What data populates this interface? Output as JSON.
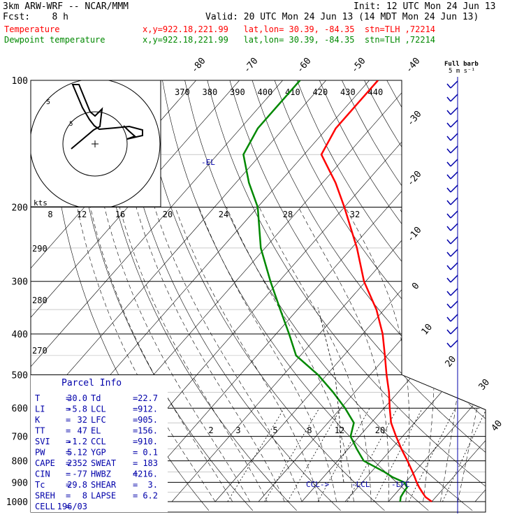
{
  "header": {
    "model": "3km ARW-WRF -- NCAR/MMM",
    "init": "Init: 12 UTC Mon 24 Jun 13",
    "fcst": "Fcst:    8 h",
    "valid": "Valid: 20 UTC Mon 24 Jun 13 (14 MDT Mon 24 Jun 13)",
    "temp_label": "Temperature",
    "temp_loc": "x,y=922.18,221.99   lat,lon= 30.39, -84.35  stn=TLH ,72214",
    "dew_label": "Dewpoint temperature",
    "dew_loc": "x,y=922.18,221.99   lat,lon= 30.39, -84.35  stn=TLH ,72214"
  },
  "colors": {
    "temperature": "#ff0000",
    "dewpoint": "#008800",
    "wind": "#0000aa",
    "axes": "#000000"
  },
  "chart_data": {
    "type": "line",
    "title": "",
    "y_axis": {
      "scale": "log",
      "direction": "decreasing-up",
      "ylim": [
        1000,
        100
      ],
      "ticks": [
        100,
        200,
        300,
        400,
        500,
        600,
        700,
        800,
        900,
        1000
      ]
    },
    "x_axis": {
      "skew": true,
      "xlim": [
        -40,
        40
      ],
      "isotherm_labels": [
        -80,
        -70,
        -60,
        -50,
        -40,
        -30,
        -20,
        -10,
        0,
        10,
        20,
        30,
        40
      ]
    },
    "potential_temperature_labels": [
      290,
      280,
      270
    ],
    "equivalent_potential_temperature_labels": [
      370,
      380,
      390,
      400,
      410,
      420,
      430,
      440
    ],
    "mixing_ratio_labels": [
      2,
      3,
      5,
      8,
      12,
      20
    ],
    "series": [
      {
        "name": "Temperature",
        "p": [
          1000,
          975,
          950,
          925,
          900,
          875,
          850,
          800,
          750,
          700,
          650,
          600,
          550,
          500,
          450,
          400,
          350,
          300,
          250,
          200,
          175,
          150,
          130,
          115,
          100
        ],
        "t": [
          30.0,
          27.6,
          25.9,
          24.2,
          22.6,
          21.1,
          19.5,
          16.1,
          12.3,
          8.5,
          4.6,
          1.3,
          -2.1,
          -6.2,
          -10.5,
          -15.4,
          -21.8,
          -30.4,
          -38.8,
          -50.0,
          -57.0,
          -66.0,
          -68.0,
          -68.0,
          -68.0
        ]
      },
      {
        "name": "Dewpoint temperature",
        "p": [
          1000,
          975,
          950,
          925,
          900,
          875,
          850,
          800,
          750,
          700,
          650,
          600,
          550,
          500,
          450,
          400,
          350,
          300,
          250,
          200,
          175,
          150,
          130,
          115,
          100
        ],
        "t": [
          22.7,
          21.9,
          21.6,
          21.4,
          19.7,
          16.0,
          13.0,
          6.0,
          2.0,
          -2.0,
          -4.0,
          -9.0,
          -15.0,
          -22.0,
          -31.0,
          -37.0,
          -44.0,
          -52.0,
          -61.0,
          -70.0,
          -77.0,
          -84.0,
          -86.0,
          -86.0,
          -86.0
        ]
      }
    ],
    "annotations": {
      "el_label": "-EL",
      "ccl_label": "CCL->",
      "lcl_label": "-LCL",
      "lfc_label": "-LFC"
    },
    "hodograph": {
      "units_label": "kts",
      "ring_labels": [
        "5"
      ],
      "inner_ring_label": "5"
    },
    "wind_barbs": {
      "title": "Full barb",
      "units": "5 m s⁻¹"
    }
  },
  "parcel_info": {
    "title": "Parcel Info",
    "rows": [
      {
        "k1": "T",
        "v1": "30.0",
        "k2": "Td",
        "v2": "22.7"
      },
      {
        "k1": "LI",
        "v1": "-5.8",
        "k2": "LCL",
        "v2": "912."
      },
      {
        "k1": "K",
        "v1": "32",
        "k2": "LFC",
        "v2": "905."
      },
      {
        "k1": "TT",
        "v1": "47",
        "k2": "EL",
        "v2": "156."
      },
      {
        "k1": "SVI",
        "v1": "-1.2",
        "k2": "CCL",
        "v2": "910."
      },
      {
        "k1": "PW",
        "v1": "5.12",
        "k2": "YGP",
        "v2": "0.1"
      },
      {
        "k1": "CAPE",
        "v1": "2352",
        "k2": "SWEAT",
        "v2": "183"
      },
      {
        "k1": "CIN",
        "v1": "-77",
        "k2": "HWBZ",
        "v2": "4216."
      },
      {
        "k1": "Tc",
        "v1": "29.8",
        "k2": "SHEAR",
        "v2": "3."
      },
      {
        "k1": "SREH",
        "v1": "8",
        "k2": "LAPSE",
        "v2": "6.2"
      },
      {
        "k1": "CELL",
        "v1": "196/03",
        "k2": "",
        "v2": ""
      }
    ]
  }
}
